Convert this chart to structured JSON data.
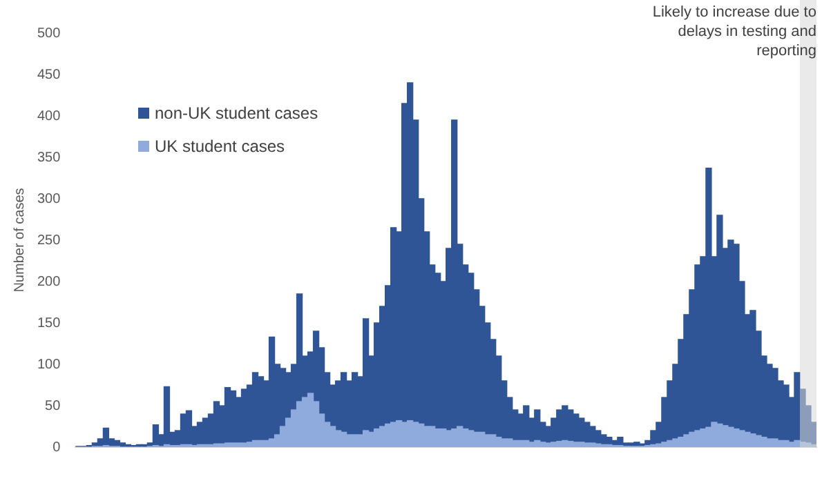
{
  "chart_data": {
    "type": "bar",
    "stacked": true,
    "ylabel": "Number of cases",
    "ylim": [
      0,
      500
    ],
    "yticks": [
      0,
      50,
      100,
      150,
      200,
      250,
      300,
      350,
      400,
      450,
      500
    ],
    "grid": false,
    "legend": "top left",
    "tick_labels": "y",
    "categories": [
      null,
      null,
      null,
      null,
      null,
      null,
      null,
      null,
      null,
      null,
      null,
      null,
      null,
      null,
      null,
      null,
      null,
      null,
      null,
      null,
      null,
      null,
      null,
      null,
      null,
      null,
      null,
      null,
      null,
      null,
      null,
      null,
      null,
      null,
      null,
      null,
      null,
      null,
      null,
      null,
      null,
      null,
      null,
      null,
      null,
      null,
      null,
      null,
      null,
      null,
      null,
      null,
      null,
      null,
      null,
      null,
      null,
      null,
      null,
      null,
      null,
      null,
      null,
      null,
      null,
      null,
      null,
      null,
      null,
      null,
      null,
      null,
      null,
      null,
      null,
      null,
      null,
      null,
      null,
      null,
      null,
      null,
      null,
      null,
      null,
      null,
      null,
      null,
      null,
      null,
      null,
      null,
      null,
      null,
      null,
      null,
      null,
      null,
      null,
      null,
      null,
      null,
      null,
      null,
      null,
      null,
      null,
      null,
      null,
      null,
      null,
      null,
      null,
      null,
      null,
      null,
      null,
      null,
      null,
      null,
      null,
      null,
      null,
      null,
      null,
      null,
      null,
      null,
      null,
      null,
      null,
      null,
      null,
      null
    ],
    "series": [
      {
        "name": "UK student cases",
        "color": "#8faadc",
        "values": [
          0,
          0,
          0,
          1,
          1,
          2,
          1,
          1,
          0,
          0,
          0,
          0,
          0,
          1,
          2,
          1,
          3,
          2,
          2,
          3,
          3,
          2,
          3,
          3,
          3,
          4,
          4,
          5,
          5,
          5,
          5,
          6,
          8,
          8,
          8,
          10,
          15,
          25,
          35,
          45,
          55,
          60,
          65,
          55,
          40,
          30,
          25,
          20,
          18,
          15,
          15,
          15,
          20,
          18,
          22,
          25,
          28,
          30,
          32,
          30,
          32,
          30,
          28,
          25,
          25,
          22,
          22,
          20,
          22,
          25,
          22,
          20,
          18,
          18,
          15,
          15,
          12,
          10,
          10,
          8,
          8,
          8,
          6,
          8,
          6,
          5,
          6,
          7,
          8,
          7,
          6,
          6,
          5,
          5,
          4,
          3,
          3,
          2,
          2,
          1,
          1,
          1,
          1,
          2,
          3,
          4,
          6,
          8,
          10,
          12,
          15,
          18,
          20,
          22,
          24,
          30,
          28,
          26,
          24,
          22,
          20,
          18,
          16,
          14,
          12,
          10,
          10,
          8,
          8,
          6,
          8,
          6,
          5,
          3
        ]
      },
      {
        "name": "non-UK student cases",
        "color": "#2f5597",
        "values": [
          1,
          1,
          2,
          4,
          9,
          21,
          9,
          7,
          5,
          3,
          2,
          3,
          3,
          4,
          25,
          14,
          70,
          16,
          18,
          37,
          41,
          23,
          27,
          32,
          37,
          51,
          46,
          67,
          63,
          55,
          65,
          69,
          82,
          77,
          72,
          123,
          85,
          70,
          55,
          55,
          130,
          50,
          50,
          85,
          80,
          60,
          50,
          60,
          72,
          65,
          75,
          70,
          135,
          92,
          128,
          145,
          167,
          235,
          228,
          385,
          408,
          365,
          272,
          235,
          195,
          188,
          178,
          220,
          373,
          220,
          198,
          190,
          172,
          152,
          135,
          115,
          98,
          70,
          50,
          37,
          32,
          42,
          29,
          37,
          24,
          20,
          29,
          38,
          42,
          38,
          34,
          29,
          25,
          20,
          16,
          12,
          9,
          6,
          10,
          4,
          4,
          5,
          3,
          6,
          17,
          26,
          54,
          72,
          90,
          118,
          145,
          172,
          200,
          208,
          313,
          200,
          252,
          214,
          226,
          223,
          180,
          142,
          149,
          126,
          98,
          90,
          85,
          72,
          67,
          54,
          82,
          64,
          45,
          27
        ]
      }
    ],
    "annotations": [
      "Likely to increase due to delays in testing and reporting"
    ]
  }
}
